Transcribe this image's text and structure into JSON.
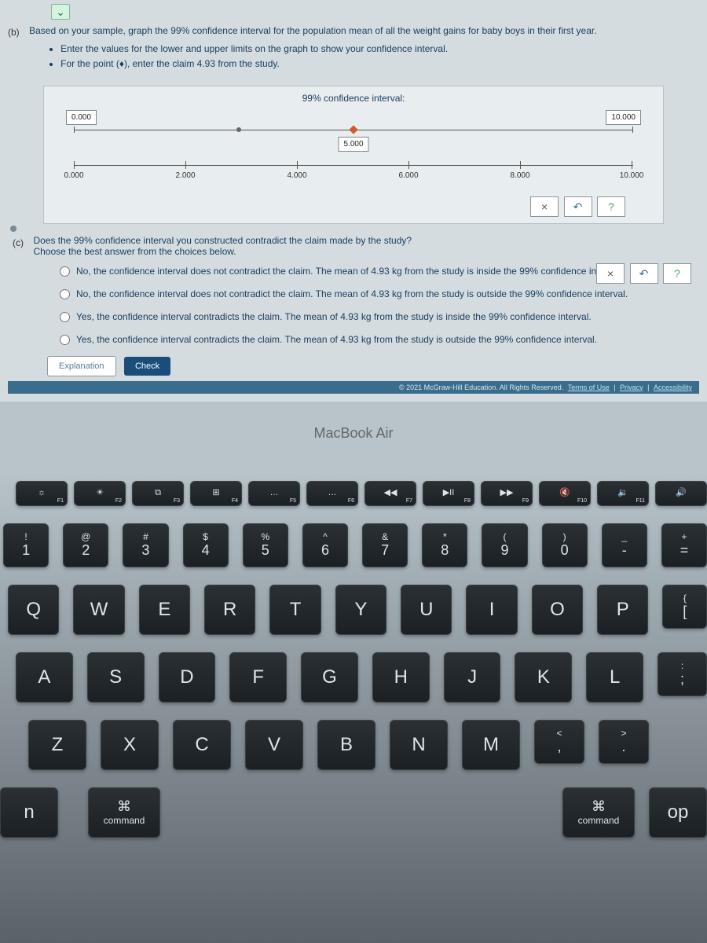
{
  "question_b": {
    "label": "(b)",
    "text": "Based on your sample, graph the 99% confidence interval for the population mean of all the weight gains for baby boys in their first year.",
    "bullets": [
      "Enter the values for the lower and upper limits on the graph to show your confidence interval.",
      "For the point (♦), enter the claim 4.93 from the study."
    ]
  },
  "ci_panel": {
    "header": "99% confidence interval:",
    "lower_box": "0.000",
    "upper_box": "10.000",
    "point_box": "5.000",
    "axis": {
      "ticks": [
        {
          "pos": 0,
          "label": "0.000"
        },
        {
          "pos": 20,
          "label": "2.000"
        },
        {
          "pos": 40,
          "label": "4.000"
        },
        {
          "pos": 60,
          "label": "6.000"
        },
        {
          "pos": 80,
          "label": "8.000"
        },
        {
          "pos": 100,
          "label": "10.000"
        }
      ]
    },
    "controls": {
      "x": "×",
      "redo": "↶",
      "help": "?"
    }
  },
  "question_c": {
    "label": "(c)",
    "text": "Does the 99% confidence interval you constructed contradict the claim made by the study?\nChoose the best answer from the choices below.",
    "choices": [
      "No, the confidence interval does not contradict the claim. The mean of 4.93 kg from the study is inside the 99% confidence interval.",
      "No, the confidence interval does not contradict the claim. The mean of 4.93 kg from the study is outside the 99% confidence interval.",
      "Yes, the confidence interval contradicts the claim. The mean of 4.93 kg from the study is inside the 99% confidence interval.",
      "Yes, the confidence interval contradicts the claim. The mean of 4.93 kg from the study is outside the 99% confidence interval."
    ],
    "side_controls": {
      "x": "×",
      "redo": "↶",
      "help": "?"
    }
  },
  "buttons": {
    "explanation": "Explanation",
    "check": "Check"
  },
  "copyright": {
    "text": "© 2021 McGraw-Hill Education. All Rights Reserved.",
    "links": [
      "Terms of Use",
      "Privacy",
      "Accessibility"
    ]
  },
  "laptop": {
    "brand": "MacBook Air"
  },
  "keyboard": {
    "fn_row": [
      {
        "icon": "☼",
        "lbl": "F1"
      },
      {
        "icon": "☀",
        "lbl": "F2"
      },
      {
        "icon": "⧉",
        "lbl": "F3"
      },
      {
        "icon": "⊞",
        "lbl": "F4"
      },
      {
        "icon": "…",
        "lbl": "F5"
      },
      {
        "icon": "…",
        "lbl": "F6"
      },
      {
        "icon": "◀◀",
        "lbl": "F7"
      },
      {
        "icon": "▶II",
        "lbl": "F8"
      },
      {
        "icon": "▶▶",
        "lbl": "F9"
      },
      {
        "icon": "🔇",
        "lbl": "F10"
      },
      {
        "icon": "🔉",
        "lbl": "F11"
      },
      {
        "icon": "🔊",
        "lbl": ""
      }
    ],
    "num_row": [
      {
        "top": "!",
        "main": "1"
      },
      {
        "top": "@",
        "main": "2"
      },
      {
        "top": "#",
        "main": "3"
      },
      {
        "top": "$",
        "main": "4"
      },
      {
        "top": "%",
        "main": "5"
      },
      {
        "top": "^",
        "main": "6"
      },
      {
        "top": "&",
        "main": "7"
      },
      {
        "top": "*",
        "main": "8"
      },
      {
        "top": "(",
        "main": "9"
      },
      {
        "top": ")",
        "main": "0"
      },
      {
        "top": "_",
        "main": "-"
      },
      {
        "top": "+",
        "main": "="
      }
    ],
    "row_q": [
      "Q",
      "W",
      "E",
      "R",
      "T",
      "Y",
      "U",
      "I",
      "O",
      "P"
    ],
    "row_q_end": {
      "top": "{",
      "main": "["
    },
    "row_a": [
      "A",
      "S",
      "D",
      "F",
      "G",
      "H",
      "J",
      "K",
      "L"
    ],
    "row_a_end": {
      "top": ":",
      "main": ";"
    },
    "row_z": [
      "Z",
      "X",
      "C",
      "V",
      "B",
      "N",
      "M"
    ],
    "row_z_end": [
      {
        "top": "<",
        "main": ","
      },
      {
        "top": ">",
        "main": "."
      }
    ],
    "cmd_left": {
      "icon": "⌘",
      "label": "command"
    },
    "cmd_right": {
      "icon": "⌘",
      "label": "command"
    },
    "opt_right": "op",
    "fn_key": "n"
  }
}
